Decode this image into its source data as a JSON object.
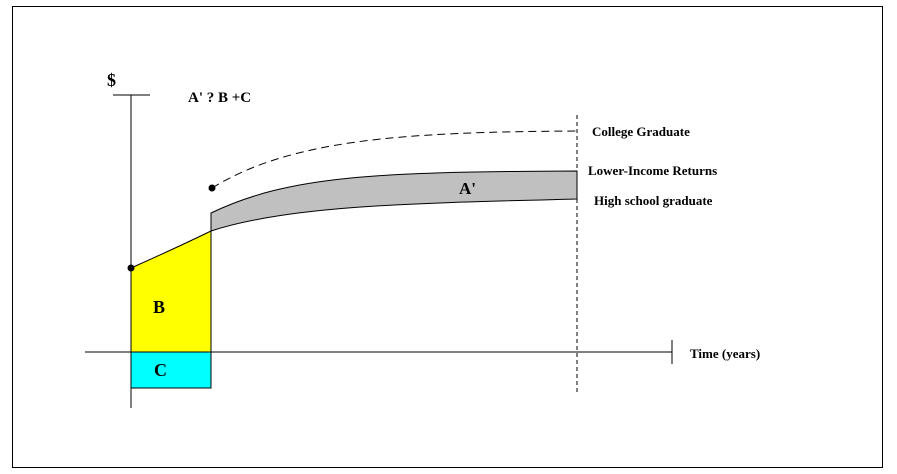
{
  "axis": {
    "y_label": "$",
    "x_label": "Time (years)"
  },
  "formula": "A' ? B +C",
  "curves": {
    "college": "College Graduate",
    "lower_income": "Lower-Income Returns",
    "high_school": "High school graduate"
  },
  "regions": {
    "a_prime": "A'",
    "b": "B",
    "c": "C"
  },
  "colors": {
    "b_fill": "#ffff00",
    "c_fill": "#00ffff",
    "a_fill": "#c0c0c0",
    "line": "#000000"
  }
}
